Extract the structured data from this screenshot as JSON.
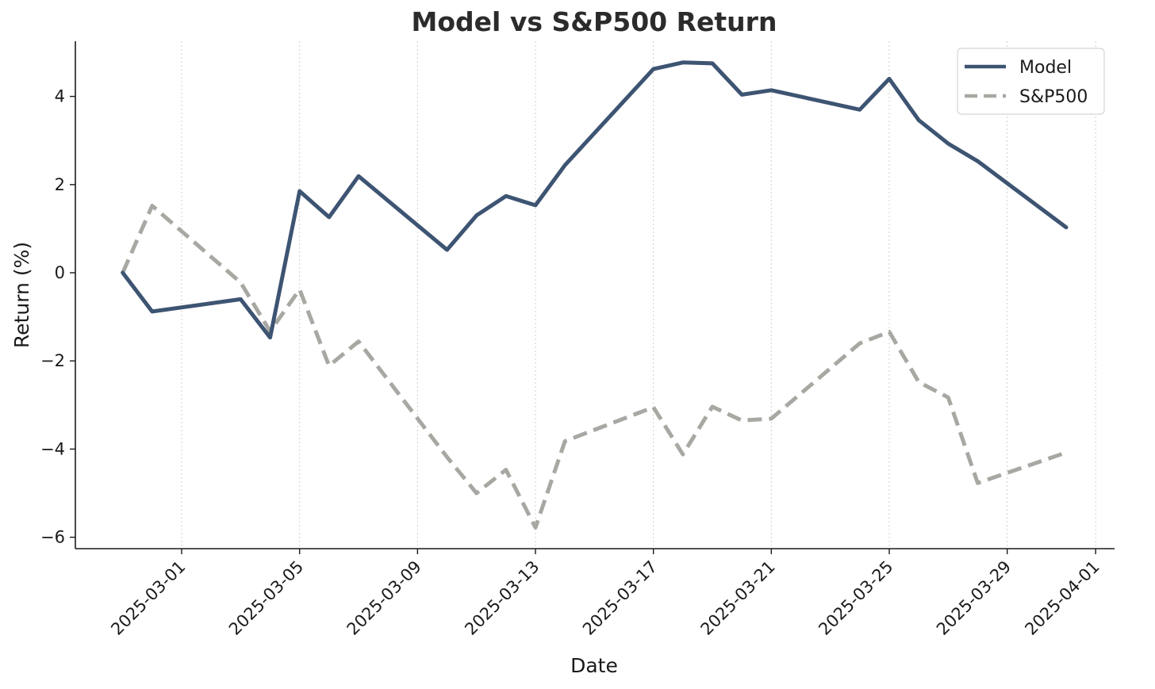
{
  "chart_data": {
    "type": "line",
    "title": "Model vs S&P500 Return",
    "xlabel": "Date",
    "ylabel": "Return (%)",
    "x": [
      "2025-02-27",
      "2025-02-28",
      "2025-03-03",
      "2025-03-04",
      "2025-03-05",
      "2025-03-06",
      "2025-03-07",
      "2025-03-10",
      "2025-03-11",
      "2025-03-12",
      "2025-03-13",
      "2025-03-14",
      "2025-03-17",
      "2025-03-18",
      "2025-03-19",
      "2025-03-20",
      "2025-03-21",
      "2025-03-24",
      "2025-03-25",
      "2025-03-26",
      "2025-03-27",
      "2025-03-28",
      "2025-03-31"
    ],
    "series": [
      {
        "name": "Model",
        "color": "#3d5472",
        "style": "solid",
        "values": [
          0.0,
          -0.88,
          -0.6,
          -1.47,
          1.85,
          1.26,
          2.19,
          0.52,
          1.3,
          1.74,
          1.53,
          2.44,
          4.62,
          4.77,
          4.75,
          4.04,
          4.14,
          3.7,
          4.4,
          3.46,
          2.93,
          2.53,
          1.03
        ]
      },
      {
        "name": "S&P500",
        "color": "#a8a8a3",
        "style": "dashed",
        "values": [
          0.0,
          1.52,
          -0.22,
          -1.33,
          -0.38,
          -2.11,
          -1.56,
          -4.18,
          -5.0,
          -4.47,
          -5.78,
          -3.82,
          -3.05,
          -4.12,
          -3.04,
          -3.35,
          -3.31,
          -1.6,
          -1.34,
          -2.48,
          -2.83,
          -4.77,
          -4.08
        ]
      }
    ],
    "xticks": [
      "2025-03-01",
      "2025-03-05",
      "2025-03-09",
      "2025-03-13",
      "2025-03-17",
      "2025-03-21",
      "2025-03-25",
      "2025-03-29",
      "2025-04-01"
    ],
    "yticks": [
      -6,
      -4,
      -2,
      0,
      2,
      4
    ],
    "ytick_labels": [
      "−6",
      "−4",
      "−2",
      "0",
      "2",
      "4"
    ],
    "xlim": [
      "2025-02-25",
      "2025-04-01"
    ],
    "ylim": [
      -6.3,
      5.2
    ],
    "grid": "vertical-dotted",
    "legend": "top-right"
  }
}
